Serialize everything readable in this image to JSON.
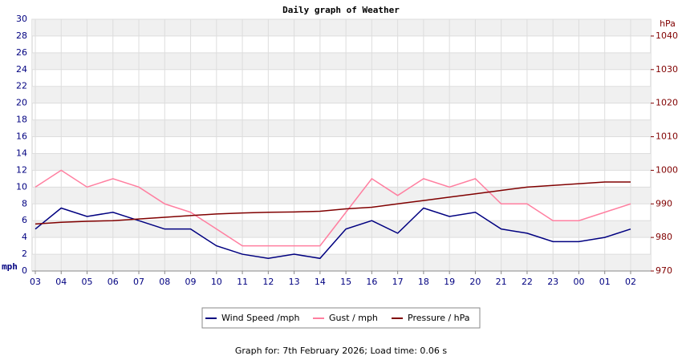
{
  "chart_data": {
    "type": "line",
    "title": "Daily graph of Weather",
    "y_label": "mph",
    "y2_label": "hPa",
    "categories": [
      "03",
      "04",
      "05",
      "06",
      "07",
      "08",
      "09",
      "10",
      "11",
      "12",
      "13",
      "14",
      "15",
      "16",
      "17",
      "18",
      "19",
      "20",
      "21",
      "22",
      "23",
      "00",
      "01",
      "02"
    ],
    "series": [
      {
        "name": "Wind Speed /mph",
        "color": "#000080",
        "values": [
          5,
          7.5,
          6.5,
          7,
          6,
          5,
          5,
          3,
          2,
          1.5,
          2,
          1.5,
          5,
          6,
          4.5,
          7.5,
          6.5,
          7,
          5,
          4.5,
          3.5,
          3.5,
          4,
          5
        ]
      },
      {
        "name": "Gust / mph",
        "color": "#ff7fa0",
        "values": [
          10,
          12,
          10,
          11,
          10,
          8,
          7,
          5,
          3,
          3,
          3,
          3,
          7,
          11,
          9,
          11,
          10,
          11,
          8,
          8,
          6,
          6,
          7,
          8
        ]
      },
      {
        "name": "Pressure / hPa",
        "color": "#800000",
        "axis": "y2",
        "values": [
          984,
          984.5,
          984.8,
          985,
          985.5,
          986,
          986.5,
          987,
          987.3,
          987.5,
          987.6,
          987.8,
          988.5,
          989,
          990,
          991,
          992,
          993,
          994,
          995,
          995.5,
          996,
          996.5,
          996.5
        ]
      }
    ],
    "ylim": [
      0,
      30
    ],
    "yticks": [
      0,
      2,
      4,
      6,
      8,
      10,
      12,
      14,
      16,
      18,
      20,
      22,
      24,
      26,
      28,
      30
    ],
    "y2lim": [
      970,
      1045
    ],
    "y2ticks": [
      970,
      980,
      990,
      1000,
      1010,
      1020,
      1030,
      1040
    ],
    "grid": true,
    "footer": "Graph for: 7th February 2026; Load time: 0.06 s"
  }
}
